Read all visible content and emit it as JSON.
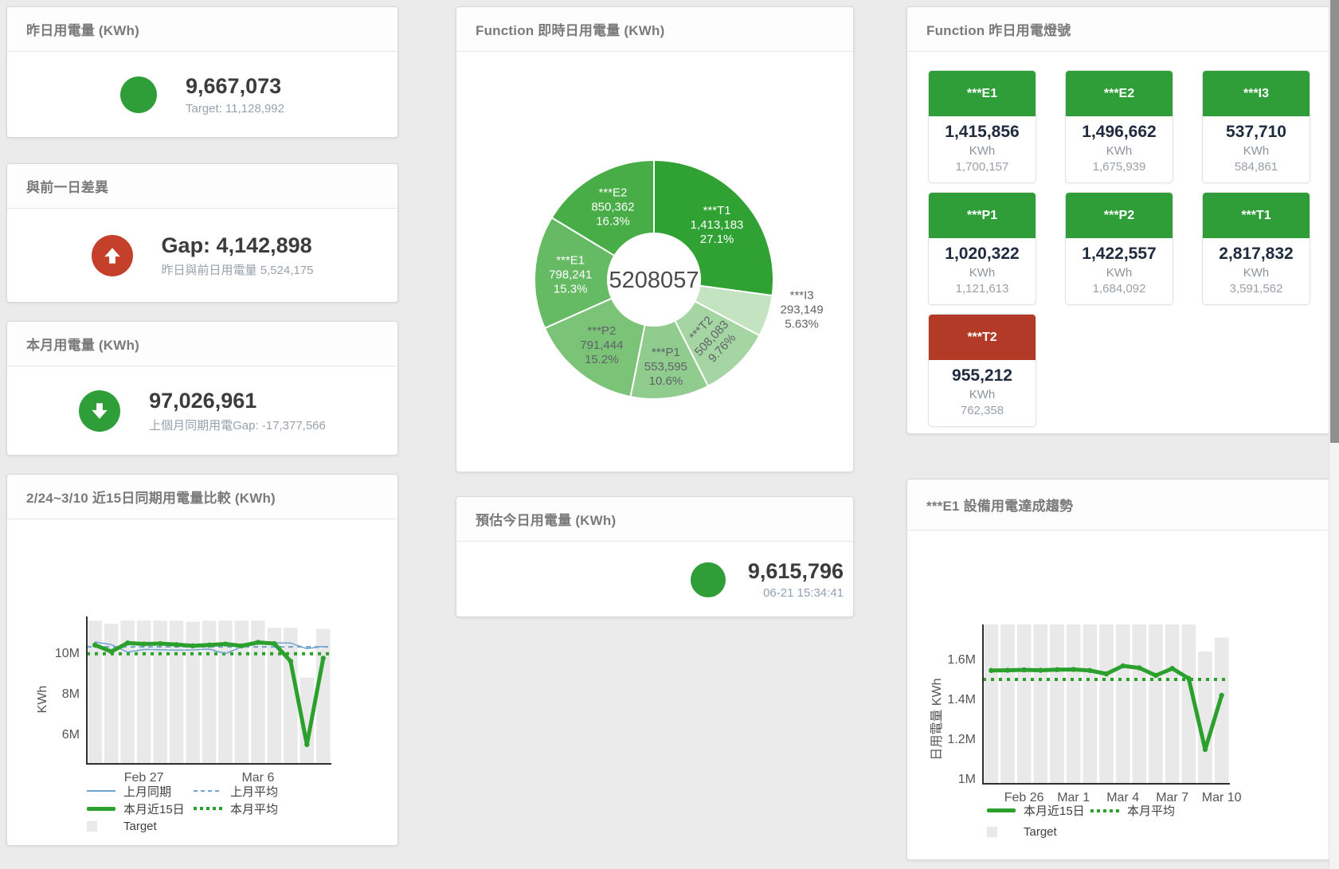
{
  "colors": {
    "green": "#2f9e38",
    "red": "#b43a28",
    "red_circle": "#c4402b",
    "line_green": "#2ca02c",
    "line_blue": "#6fa3d0",
    "target_bar": "#e9e9e9"
  },
  "cards": {
    "yesterday": {
      "title": "昨日用電量 (KWh)",
      "value": "9,667,073",
      "subtitle": "Target: 11,128,992",
      "status_color": "#2f9e38"
    },
    "gap": {
      "title": "與前一日差異",
      "value": "Gap: 4,142,898",
      "subtitle": "昨日與前日用電量 5,524,175",
      "direction": "up",
      "status_color": "#c4402b"
    },
    "month": {
      "title": "本月用電量 (KWh)",
      "value": "97,026,961",
      "subtitle": "上個月同期用電Gap: -17,377,566",
      "direction": "down",
      "status_color": "#2f9e38"
    },
    "estimate": {
      "title": "預估今日用電量 (KWh)",
      "value": "9,615,796",
      "timestamp": "06-21 15:34:41",
      "status_color": "#2f9e38"
    },
    "lights": {
      "title": "Function 昨日用電燈號",
      "tiles": [
        {
          "label": "***E1",
          "value": "1,415,856",
          "unit": "KWh",
          "target": "1,700,157",
          "status": "green"
        },
        {
          "label": "***E2",
          "value": "1,496,662",
          "unit": "KWh",
          "target": "1,675,939",
          "status": "green"
        },
        {
          "label": "***I3",
          "value": "537,710",
          "unit": "KWh",
          "target": "584,861",
          "status": "green"
        },
        {
          "label": "***P1",
          "value": "1,020,322",
          "unit": "KWh",
          "target": "1,121,613",
          "status": "green"
        },
        {
          "label": "***P2",
          "value": "1,422,557",
          "unit": "KWh",
          "target": "1,684,092",
          "status": "green"
        },
        {
          "label": "***T1",
          "value": "2,817,832",
          "unit": "KWh",
          "target": "3,591,562",
          "status": "green"
        },
        {
          "label": "***T2",
          "value": "955,212",
          "unit": "KWh",
          "target": "762,358",
          "status": "red"
        }
      ]
    }
  },
  "chart_data": [
    {
      "type": "pie",
      "title": "Function 即時日用電量 (KWh)",
      "center_label": "5208057",
      "slices": [
        {
          "name": "***T1",
          "value": 1413183,
          "value_text": "1,413,183",
          "pct": "27.1%",
          "color": "#2fa233",
          "label_color": "#ffffff"
        },
        {
          "name": "***I3",
          "value": 293149,
          "value_text": "293,149",
          "pct": "5.63%",
          "color": "#c4e3c1",
          "label_color": "#5f6368",
          "label_r": 195,
          "label_dy": -22
        },
        {
          "name": "***T2",
          "value": 508083,
          "value_text": "508,083",
          "pct": "9.76%",
          "color": "#a5d5a2",
          "label_color": "#5f6368",
          "label_r": 103,
          "label_rotate": -47
        },
        {
          "name": "***P1",
          "value": 553595,
          "value_text": "553,595",
          "pct": "10.6%",
          "color": "#90cc8d",
          "label_color": "#5f6368",
          "label_r": 110
        },
        {
          "name": "***P2",
          "value": 791444,
          "value_text": "791,444",
          "pct": "15.2%",
          "color": "#7ac377",
          "label_color": "#5f6368"
        },
        {
          "name": "***E1",
          "value": 798241,
          "value_text": "798,241",
          "pct": "15.3%",
          "color": "#65ba63",
          "label_color": "#ffffff"
        },
        {
          "name": "***E2",
          "value": 850362,
          "value_text": "850,362",
          "pct": "16.3%",
          "color": "#48ac47",
          "label_color": "#ffffff"
        }
      ]
    },
    {
      "type": "line+bar",
      "title": "2/24~3/10 近15日同期用電量比較 (KWh)",
      "ylabel": "KWh",
      "unit": "million KWh",
      "ylim": [
        4.55,
        11.8
      ],
      "categories": [
        "2/24",
        "2/25",
        "2/26",
        "2/27",
        "2/28",
        "3/1",
        "3/2",
        "3/3",
        "3/4",
        "3/5",
        "3/6",
        "3/7",
        "3/8",
        "3/9",
        "3/10"
      ],
      "yticks": [
        {
          "v": 6,
          "label": "6M"
        },
        {
          "v": 8,
          "label": "8M"
        },
        {
          "v": 10,
          "label": "10M"
        }
      ],
      "xticks": [
        {
          "i": 3,
          "label": "Feb 27"
        },
        {
          "i": 10,
          "label": "Mar 6"
        }
      ],
      "target_bars": [
        11.6,
        11.45,
        11.6,
        11.6,
        11.6,
        11.6,
        11.55,
        11.6,
        11.6,
        11.6,
        11.6,
        11.25,
        11.25,
        8.8,
        11.2
      ],
      "series": [
        {
          "name": "上月同期",
          "style": "solid",
          "width": 1.5,
          "color": "#6fa3d0",
          "values": [
            10.55,
            10.42,
            10.05,
            10.18,
            10.17,
            10.15,
            10.16,
            10.2,
            9.98,
            10.3,
            10.45,
            10.5,
            10.5,
            10.22,
            10.33
          ]
        },
        {
          "name": "上月平均",
          "style": "dashed",
          "width": 2,
          "color": "#6fa3d0",
          "value": 10.31
        },
        {
          "name": "本月近15日",
          "style": "solid",
          "width": 5,
          "color": "#2ca02c",
          "values": [
            10.4,
            10.08,
            10.5,
            10.45,
            10.47,
            10.42,
            10.36,
            10.4,
            10.45,
            10.36,
            10.53,
            10.47,
            9.6,
            5.5,
            9.75
          ]
        },
        {
          "name": "本月平均",
          "style": "dotted",
          "width": 4,
          "color": "#2ca02c",
          "value": 9.97
        }
      ],
      "legend": [
        {
          "label": "上月同期",
          "swatch": "line-thin",
          "color": "#6fa3d0"
        },
        {
          "label": "上月平均",
          "swatch": "line-dashed",
          "color": "#6fa3d0"
        },
        {
          "label": "本月近15日",
          "swatch": "line-thick",
          "color": "#2ca02c"
        },
        {
          "label": "本月平均",
          "swatch": "line-dotted",
          "color": "#2ca02c"
        },
        {
          "label": "Target",
          "swatch": "box",
          "color": "#e9e9e9"
        }
      ]
    },
    {
      "type": "line+bar",
      "title": "***E1 設備用電達成趨勢",
      "ylabel": "日用電量 KWh",
      "unit": "million KWh",
      "ylim": [
        0.98,
        1.775
      ],
      "categories": [
        "2/24",
        "2/25",
        "2/26",
        "2/27",
        "2/28",
        "3/1",
        "3/2",
        "3/3",
        "3/4",
        "3/5",
        "3/6",
        "3/7",
        "3/8",
        "3/9",
        "3/10"
      ],
      "yticks": [
        {
          "v": 1.0,
          "label": "1M"
        },
        {
          "v": 1.2,
          "label": "1.2M"
        },
        {
          "v": 1.4,
          "label": "1.4M"
        },
        {
          "v": 1.6,
          "label": "1.6M"
        }
      ],
      "xticks": [
        {
          "i": 2,
          "label": "Feb 26"
        },
        {
          "i": 5,
          "label": "Mar 1"
        },
        {
          "i": 8,
          "label": "Mar 4"
        },
        {
          "i": 11,
          "label": "Mar 7"
        },
        {
          "i": 14,
          "label": "Mar 10"
        }
      ],
      "target_bars": [
        1.78,
        1.78,
        1.78,
        1.78,
        1.78,
        1.78,
        1.78,
        1.78,
        1.78,
        1.78,
        1.78,
        1.78,
        1.78,
        1.64,
        1.71
      ],
      "series": [
        {
          "name": "本月近15日",
          "style": "solid",
          "width": 5,
          "color": "#2ca02c",
          "values": [
            1.545,
            1.546,
            1.548,
            1.546,
            1.549,
            1.55,
            1.545,
            1.528,
            1.568,
            1.558,
            1.52,
            1.555,
            1.505,
            1.148,
            1.42
          ]
        },
        {
          "name": "本月平均",
          "style": "dotted",
          "width": 4,
          "color": "#2ca02c",
          "value": 1.5
        }
      ],
      "legend": [
        {
          "label": "本月近15日",
          "swatch": "line-thick",
          "color": "#2ca02c"
        },
        {
          "label": "本月平均",
          "swatch": "line-dotted",
          "color": "#2ca02c"
        },
        {
          "label": "Target",
          "swatch": "box",
          "color": "#e9e9e9"
        }
      ]
    }
  ]
}
